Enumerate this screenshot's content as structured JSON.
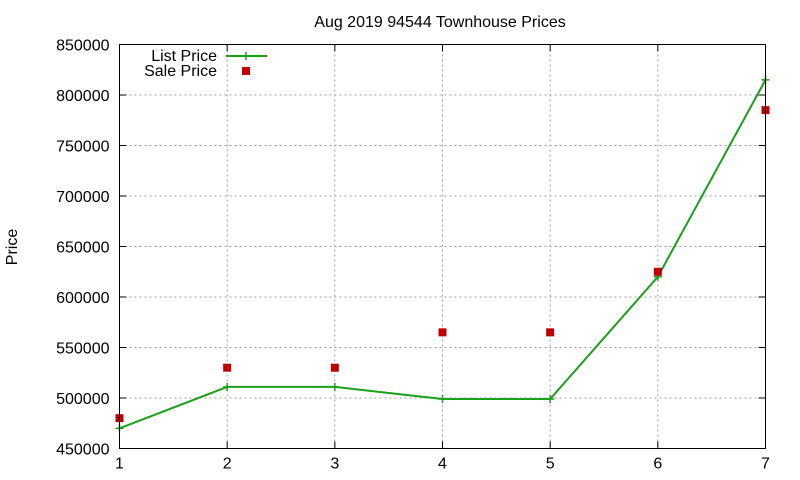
{
  "chart_data": {
    "type": "line",
    "title": "Aug 2019 94544 Townhouse Prices",
    "xlabel": "",
    "ylabel": "Price",
    "xlim": [
      1,
      7
    ],
    "ylim": [
      450000,
      850000
    ],
    "x_ticks": [
      1,
      2,
      3,
      4,
      5,
      6,
      7
    ],
    "y_ticks": [
      450000,
      500000,
      550000,
      600000,
      650000,
      700000,
      750000,
      800000,
      850000
    ],
    "grid": true,
    "legend_position": "top-left",
    "series": [
      {
        "name": "List Price",
        "style": "lines+points",
        "marker": "plus",
        "color": "#1aa01a",
        "x": [
          1,
          2,
          3,
          4,
          5,
          6,
          7
        ],
        "values": [
          470000,
          511000,
          511000,
          499000,
          499000,
          620000,
          815000
        ]
      },
      {
        "name": "Sale Price",
        "style": "points",
        "marker": "square",
        "color": "#c00000",
        "x": [
          1,
          2,
          3,
          4,
          5,
          6,
          7
        ],
        "values": [
          480000,
          530000,
          530000,
          565000,
          565000,
          625000,
          785000
        ]
      }
    ]
  }
}
